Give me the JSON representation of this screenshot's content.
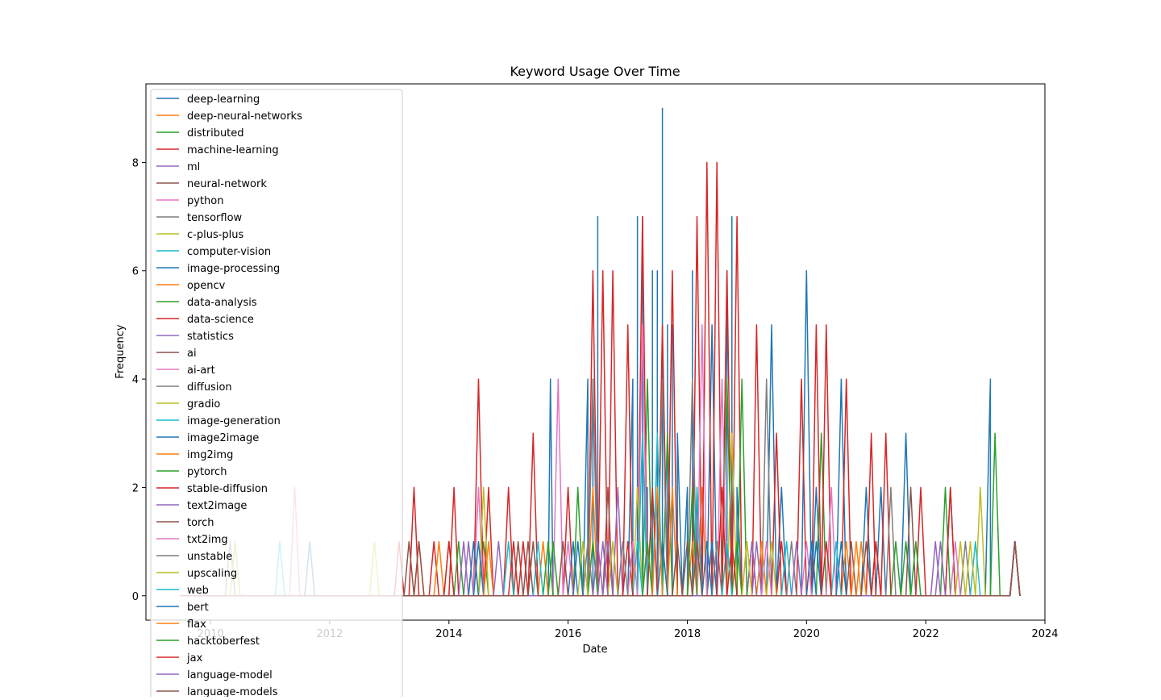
{
  "chart_data": {
    "type": "line",
    "title": "Keyword Usage Over Time",
    "xlabel": "Date",
    "ylabel": "Frequency",
    "xlim": [
      "2008-12-01",
      "2024-01-01"
    ],
    "ylim": [
      -0.45,
      9.45
    ],
    "x_ticks": [
      {
        "date": "2010-01-01",
        "label": "2010"
      },
      {
        "date": "2012-01-01",
        "label": "2012"
      },
      {
        "date": "2014-01-01",
        "label": "2014"
      },
      {
        "date": "2016-01-01",
        "label": "2016"
      },
      {
        "date": "2018-01-01",
        "label": "2018"
      },
      {
        "date": "2020-01-01",
        "label": "2020"
      },
      {
        "date": "2022-01-01",
        "label": "2022"
      },
      {
        "date": "2024-01-01",
        "label": "2024"
      }
    ],
    "y_ticks": [
      0,
      2,
      4,
      6,
      8
    ],
    "legend_position": "upper-left",
    "grid": false,
    "palette": [
      "#1f77b4",
      "#ff7f0e",
      "#2ca02c",
      "#d62728",
      "#9467bd",
      "#8c564b",
      "#e377c2",
      "#7f7f7f",
      "#bcbd22",
      "#17becf"
    ],
    "series": [
      {
        "name": "deep-learning",
        "values": [
          [
            "2015-09-01",
            0
          ],
          [
            "2015-09-15",
            4
          ],
          [
            "2015-10-01",
            0
          ],
          [
            "2016-05-01",
            4
          ],
          [
            "2016-06-01",
            4
          ],
          [
            "2016-07-01",
            7
          ],
          [
            "2016-08-01",
            0
          ],
          [
            "2017-02-01",
            4
          ],
          [
            "2017-03-01",
            7
          ],
          [
            "2017-04-01",
            7
          ],
          [
            "2017-05-01",
            2
          ],
          [
            "2017-06-01",
            6
          ],
          [
            "2017-07-01",
            6
          ],
          [
            "2017-08-01",
            9
          ],
          [
            "2017-09-01",
            5
          ],
          [
            "2017-10-01",
            5
          ],
          [
            "2017-11-01",
            3
          ],
          [
            "2018-01-01",
            2
          ],
          [
            "2018-02-01",
            6
          ],
          [
            "2018-03-01",
            2
          ],
          [
            "2018-06-01",
            5
          ],
          [
            "2018-09-01",
            6
          ],
          [
            "2018-10-01",
            7
          ],
          [
            "2018-11-01",
            2
          ],
          [
            "2019-06-01",
            5
          ],
          [
            "2019-08-01",
            2
          ],
          [
            "2020-01-01",
            6
          ],
          [
            "2020-03-01",
            2
          ],
          [
            "2020-08-01",
            4
          ],
          [
            "2021-01-01",
            2
          ],
          [
            "2021-04-01",
            2
          ],
          [
            "2021-09-01",
            3
          ],
          [
            "2022-06-01",
            2
          ],
          [
            "2023-02-01",
            4
          ],
          [
            "2023-03-01",
            0
          ],
          [
            "2023-07-01",
            1
          ]
        ]
      },
      {
        "name": "deep-neural-networks",
        "values": [
          [
            "2013-07-01",
            1
          ],
          [
            "2013-10-01",
            0
          ],
          [
            "2014-06-01",
            1
          ],
          [
            "2016-06-01",
            2
          ],
          [
            "2017-05-01",
            1
          ],
          [
            "2018-04-01",
            2
          ],
          [
            "2019-01-01",
            1
          ],
          [
            "2020-09-01",
            1
          ],
          [
            "2023-07-01",
            1
          ]
        ]
      },
      {
        "name": "distributed",
        "values": [
          [
            "2014-01-01",
            1
          ],
          [
            "2014-08-01",
            1
          ],
          [
            "2016-03-01",
            2
          ],
          [
            "2017-05-01",
            4
          ],
          [
            "2017-09-01",
            3
          ],
          [
            "2018-09-01",
            4
          ],
          [
            "2020-04-01",
            3
          ],
          [
            "2022-05-01",
            2
          ],
          [
            "2023-03-01",
            3
          ],
          [
            "2023-07-01",
            1
          ]
        ]
      },
      {
        "name": "machine-learning",
        "values": [
          [
            "2013-03-01",
            1
          ],
          [
            "2013-06-01",
            2
          ],
          [
            "2013-10-01",
            1
          ],
          [
            "2014-02-01",
            2
          ],
          [
            "2014-07-01",
            4
          ],
          [
            "2014-09-01",
            2
          ],
          [
            "2015-01-01",
            2
          ],
          [
            "2015-06-01",
            3
          ],
          [
            "2016-01-01",
            2
          ],
          [
            "2016-06-01",
            6
          ],
          [
            "2016-08-01",
            6
          ],
          [
            "2016-10-01",
            6
          ],
          [
            "2017-01-01",
            5
          ],
          [
            "2017-04-01",
            7
          ],
          [
            "2017-08-01",
            5
          ],
          [
            "2017-10-01",
            6
          ],
          [
            "2018-03-01",
            7
          ],
          [
            "2018-05-01",
            8
          ],
          [
            "2018-07-01",
            8
          ],
          [
            "2018-09-01",
            6
          ],
          [
            "2018-11-01",
            7
          ],
          [
            "2019-03-01",
            5
          ],
          [
            "2019-07-01",
            3
          ],
          [
            "2019-12-01",
            4
          ],
          [
            "2020-03-01",
            5
          ],
          [
            "2020-05-01",
            5
          ],
          [
            "2020-09-01",
            4
          ],
          [
            "2021-02-01",
            3
          ],
          [
            "2021-05-01",
            3
          ],
          [
            "2021-12-01",
            2
          ],
          [
            "2022-06-01",
            2
          ],
          [
            "2023-07-01",
            1
          ]
        ]
      },
      {
        "name": "ml",
        "values": [
          [
            "2014-05-01",
            1
          ],
          [
            "2016-11-01",
            2
          ],
          [
            "2018-06-01",
            1
          ],
          [
            "2020-02-01",
            1
          ],
          [
            "2022-03-01",
            1
          ],
          [
            "2023-07-01",
            1
          ]
        ]
      },
      {
        "name": "neural-network",
        "values": [
          [
            "2013-07-01",
            1
          ],
          [
            "2015-03-01",
            1
          ],
          [
            "2016-09-01",
            2
          ],
          [
            "2019-02-01",
            1
          ],
          [
            "2021-03-01",
            1
          ],
          [
            "2023-07-01",
            1
          ]
        ]
      },
      {
        "name": "python",
        "values": [
          [
            "2011-06-01",
            2
          ],
          [
            "2014-07-01",
            2
          ],
          [
            "2015-11-01",
            4
          ],
          [
            "2017-04-01",
            5
          ],
          [
            "2018-08-01",
            4
          ],
          [
            "2020-06-01",
            2
          ],
          [
            "2023-07-01",
            1
          ]
        ]
      },
      {
        "name": "tensorflow",
        "values": [
          [
            "2010-05-01",
            1
          ],
          [
            "2016-06-01",
            4
          ],
          [
            "2017-08-01",
            4
          ],
          [
            "2018-02-01",
            4
          ],
          [
            "2019-05-01",
            4
          ],
          [
            "2021-06-01",
            2
          ],
          [
            "2023-07-01",
            1
          ]
        ]
      },
      {
        "name": "c-plus-plus",
        "values": [
          [
            "2010-06-01",
            1
          ],
          [
            "2012-10-01",
            1
          ],
          [
            "2014-08-01",
            2
          ],
          [
            "2017-03-01",
            2
          ],
          [
            "2018-10-01",
            3
          ],
          [
            "2022-12-01",
            2
          ],
          [
            "2023-07-01",
            1
          ]
        ]
      },
      {
        "name": "computer-vision",
        "values": [
          [
            "2015-01-01",
            1
          ],
          [
            "2017-04-01",
            3
          ],
          [
            "2017-07-01",
            3
          ],
          [
            "2018-03-01",
            2
          ],
          [
            "2020-07-01",
            1
          ],
          [
            "2023-07-01",
            1
          ]
        ]
      },
      {
        "name": "image-processing",
        "values": [
          [
            "2011-09-01",
            1
          ],
          [
            "2014-07-01",
            1
          ],
          [
            "2016-02-01",
            1
          ],
          [
            "2018-06-01",
            1
          ],
          [
            "2020-03-01",
            1
          ],
          [
            "2023-07-01",
            1
          ]
        ]
      },
      {
        "name": "opencv",
        "values": [
          [
            "2013-11-01",
            1
          ],
          [
            "2015-08-01",
            1
          ],
          [
            "2017-10-01",
            2
          ],
          [
            "2019-04-01",
            1
          ],
          [
            "2023-07-01",
            1
          ]
        ]
      },
      {
        "name": "data-analysis",
        "values": [
          [
            "2014-03-01",
            1
          ],
          [
            "2016-06-01",
            1
          ],
          [
            "2018-11-01",
            1
          ],
          [
            "2021-09-01",
            1
          ],
          [
            "2023-07-01",
            1
          ]
        ]
      },
      {
        "name": "data-science",
        "values": [
          [
            "2014-01-01",
            1
          ],
          [
            "2015-02-01",
            1
          ],
          [
            "2017-06-01",
            2
          ],
          [
            "2019-08-01",
            1
          ],
          [
            "2023-07-01",
            1
          ]
        ]
      },
      {
        "name": "statistics",
        "values": [
          [
            "2014-04-01",
            1
          ],
          [
            "2016-09-01",
            1
          ],
          [
            "2019-02-01",
            1
          ],
          [
            "2023-07-01",
            1
          ]
        ]
      },
      {
        "name": "ai",
        "values": [
          [
            "2015-05-01",
            1
          ],
          [
            "2017-11-01",
            1
          ],
          [
            "2020-10-01",
            1
          ],
          [
            "2023-07-01",
            1
          ]
        ]
      },
      {
        "name": "ai-art",
        "values": [
          [
            "2016-01-01",
            1
          ],
          [
            "2018-04-01",
            5
          ],
          [
            "2020-01-01",
            1
          ],
          [
            "2023-07-01",
            1
          ]
        ]
      },
      {
        "name": "diffusion",
        "values": [
          [
            "2016-05-01",
            1
          ],
          [
            "2018-07-01",
            1
          ],
          [
            "2022-09-01",
            1
          ],
          [
            "2023-07-01",
            1
          ]
        ]
      },
      {
        "name": "gradio",
        "values": [
          [
            "2016-10-01",
            1
          ],
          [
            "2019-06-01",
            1
          ],
          [
            "2022-08-01",
            1
          ],
          [
            "2023-07-01",
            1
          ]
        ]
      },
      {
        "name": "image-generation",
        "values": [
          [
            "2017-03-01",
            1
          ],
          [
            "2019-09-01",
            1
          ],
          [
            "2022-11-01",
            1
          ],
          [
            "2023-07-01",
            1
          ]
        ]
      },
      {
        "name": "image2image",
        "values": [
          [
            "2017-08-01",
            1
          ],
          [
            "2020-02-01",
            1
          ],
          [
            "2023-07-01",
            1
          ]
        ]
      },
      {
        "name": "img2img",
        "values": [
          [
            "2018-02-01",
            1
          ],
          [
            "2020-11-01",
            1
          ],
          [
            "2023-07-01",
            1
          ]
        ]
      },
      {
        "name": "pytorch",
        "values": [
          [
            "2015-09-01",
            1
          ],
          [
            "2017-05-01",
            1
          ],
          [
            "2018-12-01",
            4
          ],
          [
            "2021-07-01",
            1
          ],
          [
            "2023-07-01",
            1
          ]
        ]
      },
      {
        "name": "stable-diffusion",
        "values": [
          [
            "2017-01-01",
            1
          ],
          [
            "2018-10-01",
            1
          ],
          [
            "2020-05-01",
            1
          ],
          [
            "2023-07-01",
            1
          ]
        ]
      },
      {
        "name": "text2image",
        "values": [
          [
            "2016-08-01",
            1
          ],
          [
            "2019-03-01",
            1
          ],
          [
            "2022-04-01",
            1
          ],
          [
            "2023-07-01",
            1
          ]
        ]
      },
      {
        "name": "torch",
        "values": [
          [
            "2013-05-01",
            1
          ],
          [
            "2015-12-01",
            1
          ],
          [
            "2018-01-01",
            1
          ],
          [
            "2021-10-01",
            2
          ],
          [
            "2023-07-01",
            1
          ]
        ]
      },
      {
        "name": "txt2img",
        "values": [
          [
            "2017-02-01",
            1
          ],
          [
            "2019-05-01",
            1
          ],
          [
            "2022-07-01",
            1
          ],
          [
            "2023-07-01",
            1
          ]
        ]
      },
      {
        "name": "unstable",
        "values": [
          [
            "2016-12-01",
            1
          ],
          [
            "2019-10-01",
            1
          ],
          [
            "2023-07-01",
            1
          ]
        ]
      },
      {
        "name": "upscaling",
        "values": [
          [
            "2016-04-01",
            1
          ],
          [
            "2019-01-01",
            1
          ],
          [
            "2022-10-01",
            1
          ],
          [
            "2023-07-01",
            1
          ]
        ]
      },
      {
        "name": "web",
        "values": [
          [
            "2011-03-01",
            1
          ],
          [
            "2015-07-01",
            1
          ],
          [
            "2018-09-01",
            1
          ],
          [
            "2023-07-01",
            1
          ]
        ]
      },
      {
        "name": "bert",
        "values": [
          [
            "2014-06-01",
            1
          ],
          [
            "2016-03-01",
            1
          ],
          [
            "2018-05-01",
            1
          ],
          [
            "2020-08-01",
            1
          ],
          [
            "2023-07-01",
            1
          ]
        ]
      },
      {
        "name": "flax",
        "values": [
          [
            "2014-09-01",
            1
          ],
          [
            "2017-07-01",
            2
          ],
          [
            "2020-12-01",
            1
          ],
          [
            "2023-07-01",
            1
          ]
        ]
      },
      {
        "name": "hacktoberfest",
        "values": [
          [
            "2015-10-01",
            1
          ],
          [
            "2018-02-01",
            2
          ],
          [
            "2021-11-01",
            1
          ],
          [
            "2023-07-01",
            1
          ]
        ]
      },
      {
        "name": "jax",
        "values": [
          [
            "2015-04-01",
            1
          ],
          [
            "2018-08-01",
            2
          ],
          [
            "2021-03-01",
            1
          ],
          [
            "2023-07-01",
            1
          ]
        ]
      },
      {
        "name": "language-model",
        "values": [
          [
            "2014-11-01",
            1
          ],
          [
            "2016-07-01",
            1
          ],
          [
            "2019-11-01",
            1
          ],
          [
            "2023-07-01",
            1
          ]
        ]
      },
      {
        "name": "language-models",
        "values": [
          [
            "2015-06-01",
            1
          ],
          [
            "2018-03-01",
            1
          ],
          [
            "2021-01-01",
            1
          ],
          [
            "2023-07-01",
            1
          ]
        ]
      }
    ]
  }
}
